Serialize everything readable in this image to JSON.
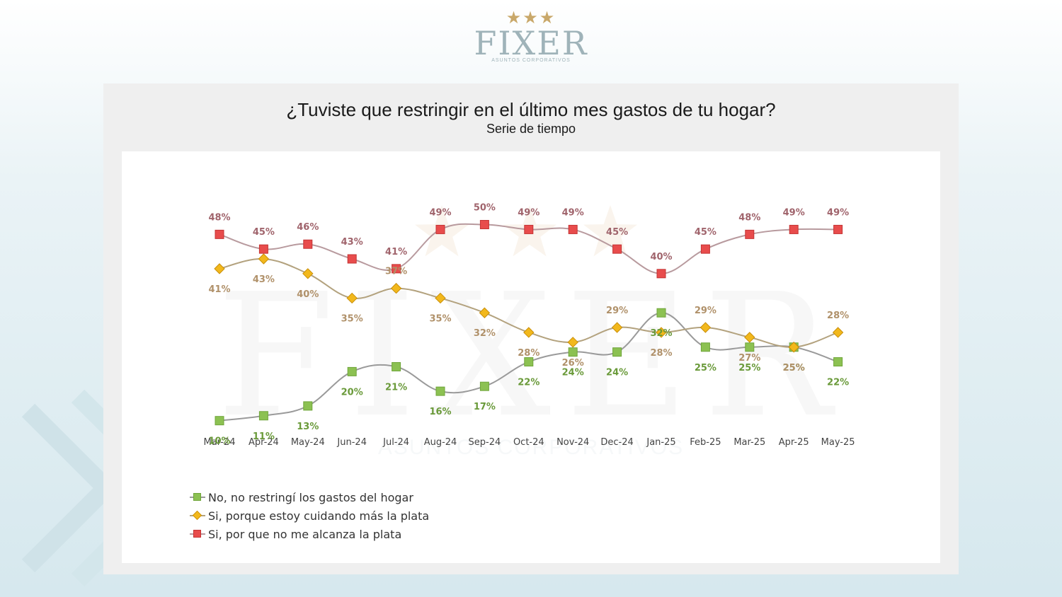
{
  "logo": {
    "stars": "★★★",
    "wordmark": "FIXER",
    "subtitle": "ASUNTOS CORPORATIVOS"
  },
  "watermark": {
    "wordmark": "FIXER",
    "subtitle": "ASUNTOS CORPORATIVOS"
  },
  "chart_data": {
    "type": "line",
    "title": "¿Tuviste que restringir en el último mes gastos de tu hogar?",
    "subtitle": "Serie de tiempo",
    "categories": [
      "Mar-24",
      "Apr-24",
      "May-24",
      "Jun-24",
      "Jul-24",
      "Aug-24",
      "Sep-24",
      "Oct-24",
      "Nov-24",
      "Dec-24",
      "Jan-25",
      "Feb-25",
      "Mar-25",
      "Apr-25",
      "May-25"
    ],
    "ylim": [
      0,
      55
    ],
    "grid": false,
    "legend_position": "bottom-left",
    "series": [
      {
        "name": "No, no restringí los gastos del hogar",
        "color": "#8cc152",
        "line_color": "#9a9a9a",
        "label_color": "#6a9a3a",
        "marker": "square",
        "label_pos": "below",
        "values": [
          10,
          11,
          13,
          20,
          21,
          16,
          17,
          22,
          24,
          24,
          32,
          25,
          25,
          25,
          22
        ],
        "labels": [
          "10%",
          "11%",
          "13%",
          "20%",
          "21%",
          "16%",
          "17%",
          "22%",
          "24%",
          "24%",
          "32%",
          "25%",
          "25%",
          "25%",
          "22%"
        ]
      },
      {
        "name": "Si, porque estoy cuidando más la plata",
        "color": "#f2b81c",
        "line_color": "#b3a27e",
        "label_color": "#b0916a",
        "marker": "diamond",
        "label_pos": "alt",
        "values": [
          41,
          43,
          40,
          35,
          37,
          35,
          32,
          28,
          26,
          29,
          28,
          29,
          27,
          25,
          28
        ],
        "labels": [
          "41%",
          "43%",
          "40%",
          "35%",
          "37%",
          "35%",
          "32%",
          "28%",
          "26%",
          "29%",
          "28%",
          "29%",
          "27%",
          "25%",
          "28%"
        ]
      },
      {
        "name": "Si, por que no me alcanza la plata",
        "color": "#e84c4c",
        "line_color": "#b89a9e",
        "label_color": "#a0646c",
        "marker": "square",
        "label_pos": "above",
        "values": [
          48,
          45,
          46,
          43,
          41,
          49,
          50,
          49,
          49,
          45,
          40,
          45,
          48,
          49,
          49
        ],
        "labels": [
          "48%",
          "45%",
          "46%",
          "43%",
          "41%",
          "49%",
          "50%",
          "49%",
          "49%",
          "45%",
          "40%",
          "45%",
          "48%",
          "49%",
          "49%"
        ]
      }
    ]
  }
}
